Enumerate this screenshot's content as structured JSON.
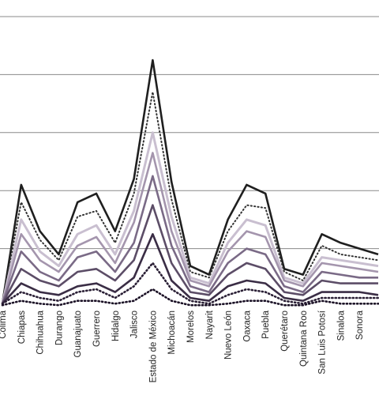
{
  "chart_data": {
    "type": "line",
    "categories": [
      "Colima",
      "Chiapas",
      "Chihuahua",
      "Durango",
      "Guanajuato",
      "Guerrero",
      "Hidalgo",
      "Jalisco",
      "Estado de México",
      "Michoacán",
      "Morelos",
      "Nayarit",
      "Nuevo León",
      "Oaxaca",
      "Puebla",
      "Querétaro",
      "Quintana Roo",
      "San Luis Potosí",
      "Sinaloa",
      "Sonora",
      ""
    ],
    "ylim": [
      0,
      100
    ],
    "grid": true,
    "legend": "none",
    "series": [
      {
        "values": [
          1,
          42,
          26,
          18,
          36,
          39,
          26,
          44,
          85,
          43,
          14,
          11,
          30,
          42,
          39,
          13,
          11,
          25,
          22,
          20,
          18
        ],
        "color": "#1f1f1f",
        "dash": "solid",
        "width": 2.6
      },
      {
        "values": [
          1,
          36,
          23,
          16,
          31,
          33,
          22,
          39,
          74,
          37,
          12,
          10,
          26,
          35,
          34,
          12,
          9,
          21,
          18,
          17,
          16
        ],
        "color": "#333333",
        "dash": "dot",
        "width": 2.0
      },
      {
        "values": [
          1,
          30,
          19,
          14,
          25,
          28,
          18,
          33,
          60,
          31,
          10,
          8,
          22,
          30,
          28,
          10,
          8,
          17,
          16,
          15,
          14
        ],
        "color": "#c9bfd0",
        "dash": "solid",
        "width": 3.0
      },
      {
        "values": [
          1,
          25,
          16,
          12,
          21,
          24,
          15,
          29,
          53,
          26,
          9,
          7,
          19,
          26,
          24,
          9,
          7,
          15,
          14,
          13,
          12
        ],
        "color": "#a495ad",
        "dash": "solid",
        "width": 2.6
      },
      {
        "values": [
          1,
          19,
          12,
          9,
          17,
          19,
          12,
          22,
          45,
          21,
          7,
          5,
          15,
          20,
          18,
          7,
          5,
          12,
          11,
          10,
          10
        ],
        "color": "#7a6a86",
        "dash": "solid",
        "width": 2.6
      },
      {
        "values": [
          1,
          13,
          9,
          7,
          12,
          13,
          9,
          16,
          35,
          15,
          5,
          4,
          11,
          15,
          13,
          5,
          4,
          9,
          8,
          8,
          8
        ],
        "color": "#5c4d67",
        "dash": "solid",
        "width": 2.6
      },
      {
        "values": [
          1,
          8,
          5,
          4,
          7,
          8,
          5,
          10,
          25,
          9,
          3,
          2,
          7,
          9,
          8,
          3,
          2,
          5,
          5,
          5,
          4
        ],
        "color": "#3a2d45",
        "dash": "solid",
        "width": 2.6
      },
      {
        "values": [
          1,
          5,
          3,
          2,
          5,
          6,
          3,
          7,
          15,
          6,
          2,
          1,
          4,
          6,
          5,
          2,
          1,
          3,
          3,
          3,
          3
        ],
        "color": "#2a1f35",
        "dash": "dot",
        "width": 2.6
      },
      {
        "values": [
          0.5,
          2,
          1,
          0.5,
          2,
          2,
          1,
          2,
          6,
          2,
          0.5,
          0.5,
          1,
          2,
          2,
          0.5,
          0.5,
          2,
          1,
          1,
          1
        ],
        "color": "#1a1025",
        "dash": "dot",
        "width": 2.6
      }
    ]
  }
}
